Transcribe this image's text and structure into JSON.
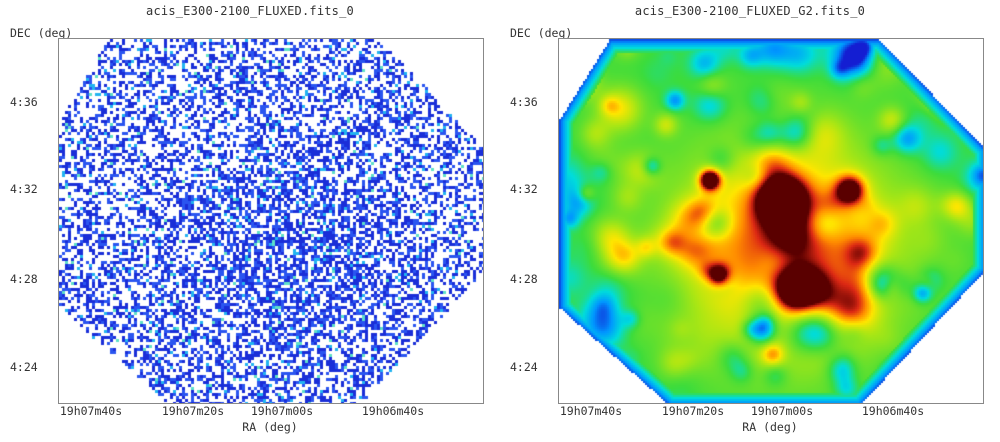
{
  "panels": [
    {
      "title": "acis_E300-2100_FLUXED.fits_0",
      "y_axis_label": "DEC (deg)",
      "x_axis_label": "RA (deg)",
      "y_ticks": [
        "4:36",
        "4:32",
        "4:28",
        "4:24"
      ],
      "x_ticks": [
        "19h07m40s",
        "19h07m20s",
        "19h07m00s",
        "19h06m40s"
      ],
      "colormap": "white-blue-cyan sparse counts"
    },
    {
      "title": "acis_E300-2100_FLUXED_G2.fits_0",
      "y_axis_label": "DEC (deg)",
      "x_axis_label": "RA (deg)",
      "y_ticks": [
        "4:36",
        "4:32",
        "4:28",
        "4:24"
      ],
      "x_ticks": [
        "19h07m40s",
        "19h07m20s",
        "19h07m00s",
        "19h06m40s"
      ],
      "colormap": "rainbow smoothed"
    }
  ]
}
